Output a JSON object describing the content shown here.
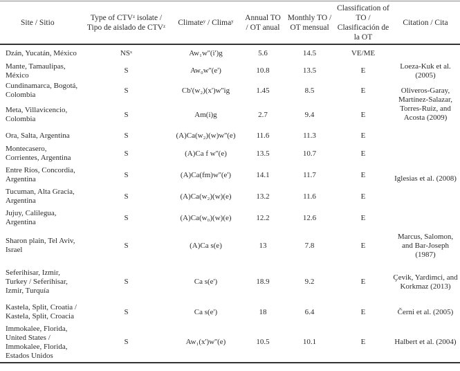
{
  "headers": {
    "site": "Site / Sitio",
    "type": "Type of CTVᶻ isolate / Tipo de aislado de CTVᶻ",
    "climate": "Climateʸ / Climaʸ",
    "annual": "Annual TO / OT anual",
    "monthly": "Monthly TO / OT mensual",
    "classification": "Classification of TO / Clasificación de la OT",
    "citation": "Citation / Cita"
  },
  "rows": [
    {
      "site": "Dzán, Yucatán, México",
      "type": "NSˣ",
      "climate": "Aw₁w''(i')g",
      "annual": "5.6",
      "monthly": "14.5",
      "class": "VE/ME"
    },
    {
      "site": "Mante, Tamaulipas, México",
      "type": "S",
      "climate": "Aw₀w''(e')",
      "annual": "10.8",
      "monthly": "13.5",
      "class": "E"
    },
    {
      "site": "Cundinamarca, Bogotá, Colombia",
      "type": "S",
      "climate": "Cb'(w₂)(x')w''ig",
      "annual": "1.45",
      "monthly": "8.5",
      "class": "E"
    },
    {
      "site": "Meta, Villavicencio, Colombia",
      "type": "S",
      "climate": "Am(i)g",
      "annual": "2.7",
      "monthly": "9.4",
      "class": "E"
    },
    {
      "site": "Ora, Salta, Argentina",
      "type": "S",
      "climate": "(A)Ca(w₂)(w)w''(e)",
      "annual": "11.6",
      "monthly": "11.3",
      "class": "E"
    },
    {
      "site": "Montecasero, Corrientes, Argentina",
      "type": "S",
      "climate": "(A)Ca f w''(e)",
      "annual": "13.5",
      "monthly": "10.7",
      "class": "E"
    },
    {
      "site": "Entre Ríos, Concordia, Argentina",
      "type": "S",
      "climate": "(A)Ca(fm)w''(e')",
      "annual": "14.1",
      "monthly": "11.7",
      "class": "E"
    },
    {
      "site": "Tucuman, Alta Gracia, Argentina",
      "type": "S",
      "climate": "(A)Ca(w₂)(w)(e)",
      "annual": "13.2",
      "monthly": "11.6",
      "class": "E"
    },
    {
      "site": "Jujuy, Calilegua, Argentina",
      "type": "S",
      "climate": "(A)Ca(w₀)(w)(e)",
      "annual": "12.2",
      "monthly": "12.6",
      "class": "E"
    },
    {
      "site": "Sharon plain, Tel Aviv, Israel",
      "type": "S",
      "climate": "(A)Ca s(e)",
      "annual": "13",
      "monthly": "7.8",
      "class": "E"
    },
    {
      "site": "Seferihisar, Izmir, Turkey / Seferihisar, Izmir, Turquía",
      "type": "S",
      "climate": "Ca s(e')",
      "annual": "18.9",
      "monthly": "9.2",
      "class": "E"
    },
    {
      "site": "Kastela, Split, Croatia / Kastela, Split, Croacia",
      "type": "S",
      "climate": "Ca s(e')",
      "annual": "18",
      "monthly": "6.4",
      "class": "E"
    },
    {
      "site": "Immokalee, Florida, United States / Immokalee, Florida, Estados Unidos",
      "type": "S",
      "climate": "Aw₁(x')w''(e)",
      "annual": "10.5",
      "monthly": "10.1",
      "class": "E"
    }
  ],
  "citations": {
    "dzan": "",
    "loeza": "Loeza-Kuk et al. (2005)",
    "oliveros": "Oliveros-Garay, Martínez-Salazar, Torres-Ruiz, and Acosta (2009)",
    "iglesias": "Iglesias et al. (2008)",
    "marcus": "Marcus, Salomon, and Bar-Joseph (1987)",
    "cevik": "Çevik, Yardimci, and Korkmaz (2013)",
    "cerni": "Černi et al. (2005)",
    "halbert": "Halbert et al. (2004)"
  }
}
